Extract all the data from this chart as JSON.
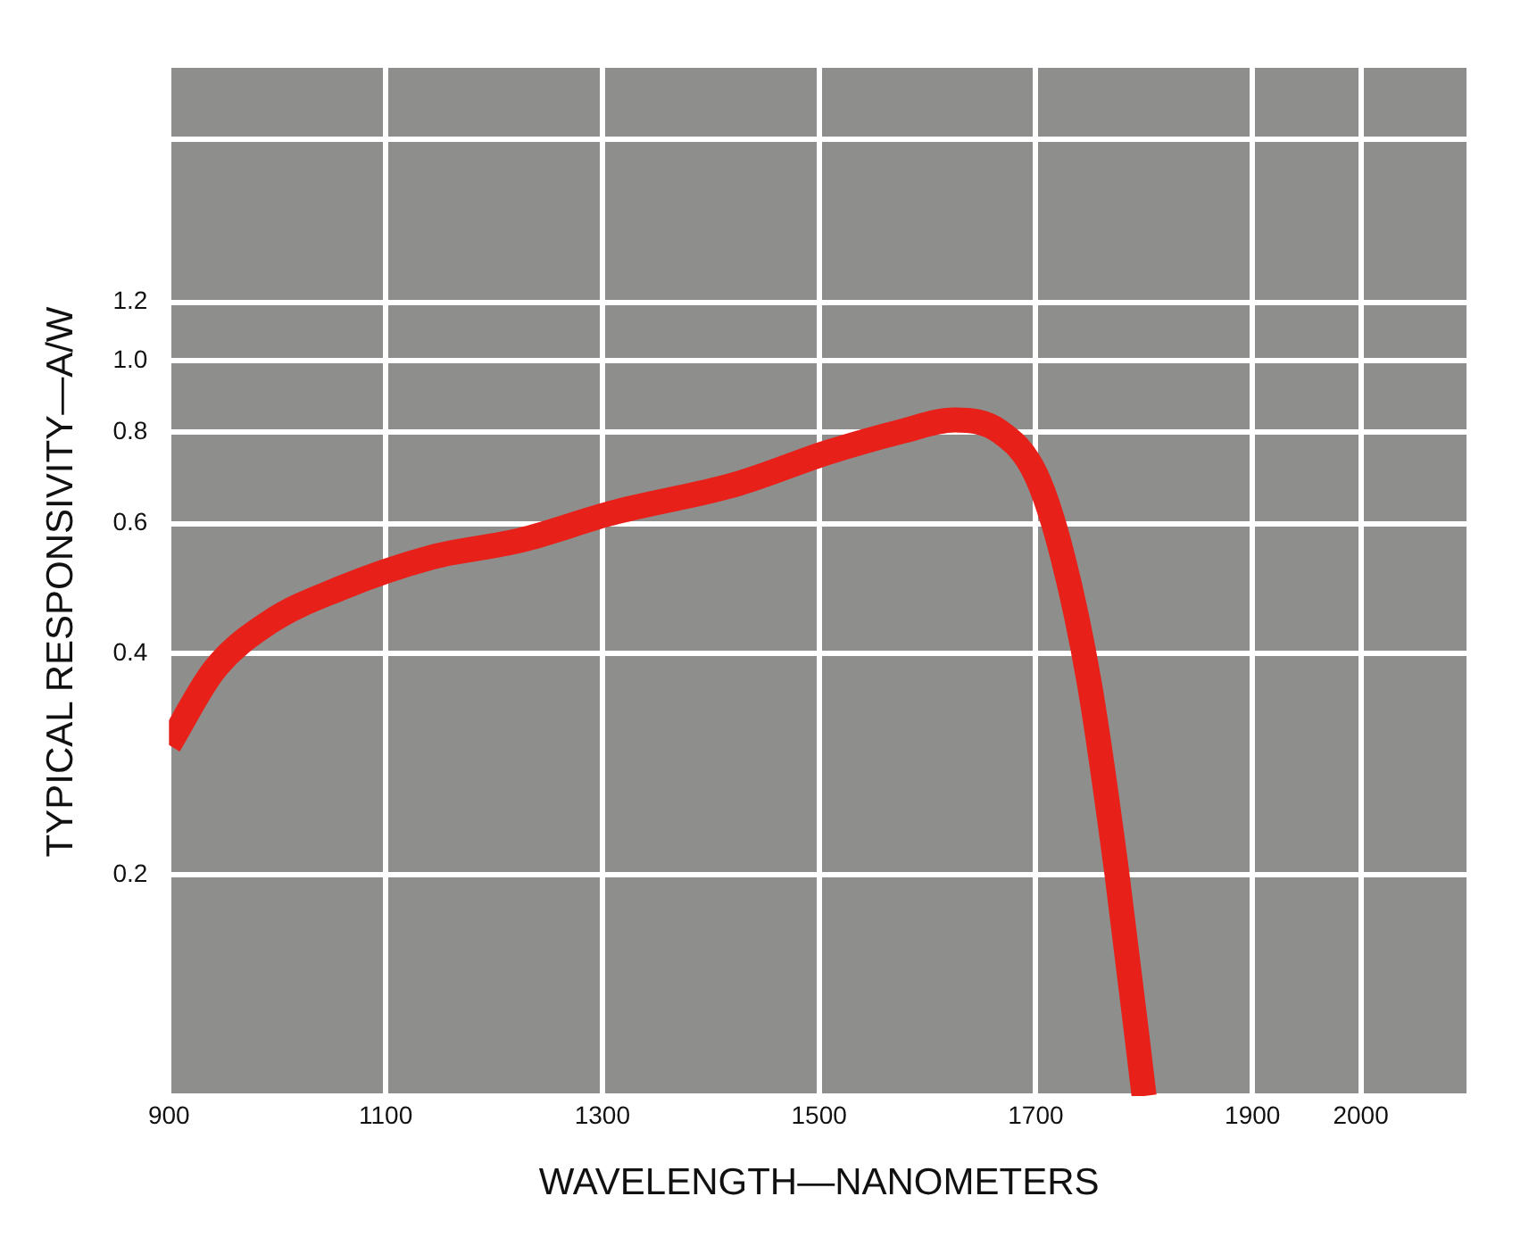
{
  "chart_data": {
    "type": "line",
    "xlabel": "WAVELENGTH—NANOMETERS",
    "ylabel": "TYPICAL RESPONSIVITY—A/W",
    "log": "y",
    "grid": true,
    "marker": "none",
    "xlim": [
      900,
      2100
    ],
    "xticks": [
      900,
      1100,
      1300,
      1500,
      1700,
      1900,
      2000,
      {
        "value": 2100,
        "label": null
      }
    ],
    "ylim": [
      0.1,
      2.5
    ],
    "yticks": [
      {
        "value": 0.1,
        "label": null
      },
      0.2,
      0.4,
      0.6,
      0.8,
      "1.0",
      1.2,
      {
        "value": 2,
        "label": null
      }
    ],
    "series": [
      {
        "color": "#e8201a",
        "x": [
          900,
          942,
          992,
          1058,
          1142,
          1225,
          1308,
          1425,
          1508,
          1575,
          1625,
          1667,
          1700,
          1725,
          1750,
          1775,
          1800
        ],
        "values": [
          0.3,
          0.38,
          0.44,
          0.49,
          0.54,
          0.57,
          0.62,
          0.68,
          0.75,
          0.8,
          0.83,
          0.8,
          0.7,
          0.54,
          0.36,
          0.2,
          0.1
        ]
      }
    ]
  }
}
